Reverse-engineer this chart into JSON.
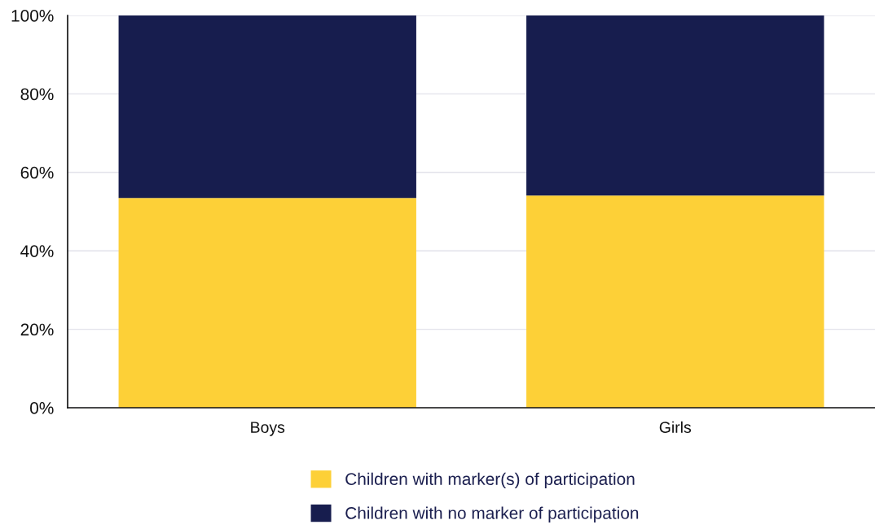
{
  "chart_data": {
    "type": "bar",
    "stacked": true,
    "categories": [
      "Boys",
      "Girls"
    ],
    "series": [
      {
        "name": "Children with marker(s) of participation",
        "color": "#fdd037",
        "values": [
          53.5,
          54.1
        ]
      },
      {
        "name": "Children with no marker of participation",
        "color": "#171d4e",
        "values": [
          46.5,
          45.9
        ]
      }
    ],
    "ylim": [
      0,
      100
    ],
    "yticks": [
      {
        "value": 0,
        "label": "0%"
      },
      {
        "value": 20,
        "label": "20%"
      },
      {
        "value": 40,
        "label": "40%"
      },
      {
        "value": 60,
        "label": "60%"
      },
      {
        "value": 80,
        "label": "80%"
      },
      {
        "value": 100,
        "label": "100%"
      }
    ],
    "grid": "y",
    "legend": "bottom"
  }
}
